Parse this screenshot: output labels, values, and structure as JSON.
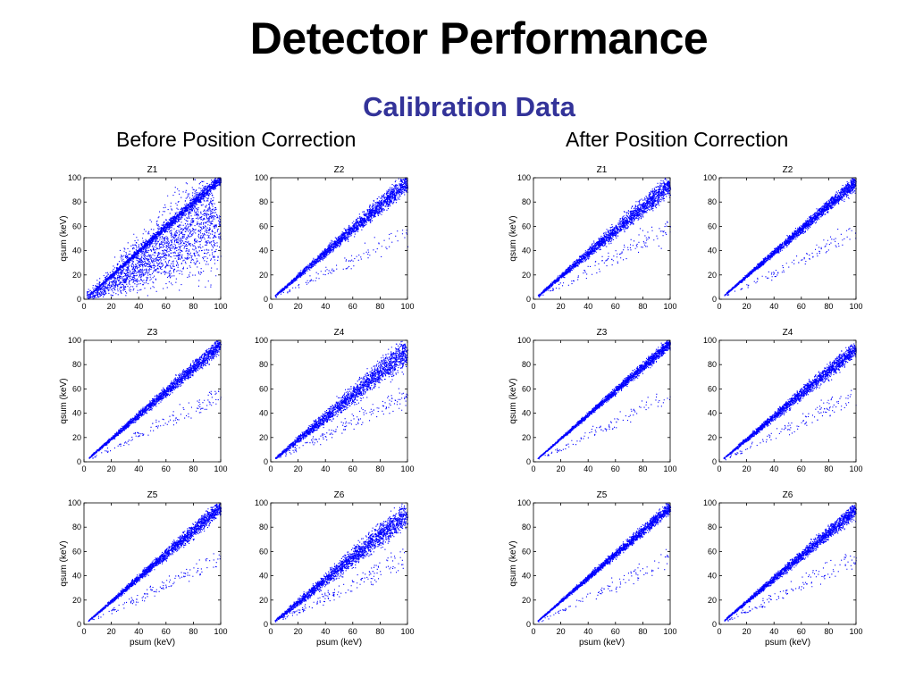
{
  "title": "Detector Performance",
  "subtitle": "Calibration Data",
  "panels": [
    {
      "heading": "Before Position Correction"
    },
    {
      "heading": "After Position Correction"
    }
  ],
  "colors": {
    "title": "#000000",
    "subtitle": "#333399",
    "points": "#0000ff",
    "axes": "#000000"
  },
  "chart_data": [
    {
      "type": "scatter",
      "panel": "Before Position Correction",
      "title": "Z1",
      "xlabel": "",
      "ylabel": "qsum (keV)",
      "xlim": [
        0,
        100
      ],
      "ylim": [
        0,
        100
      ],
      "xticks": [
        0,
        20,
        40,
        60,
        80,
        100
      ],
      "yticks": [
        0,
        20,
        40,
        60,
        80,
        100
      ],
      "bands": [
        {
          "from": [
            2,
            2
          ],
          "to": [
            100,
            68
          ],
          "width_at_end": 75,
          "density": 0.9
        },
        {
          "from": [
            5,
            5
          ],
          "to": [
            100,
            100
          ],
          "width_at_end": 8,
          "density": 0.75
        }
      ]
    },
    {
      "type": "scatter",
      "panel": "Before Position Correction",
      "title": "Z2",
      "xlabel": "",
      "ylabel": "",
      "xlim": [
        0,
        100
      ],
      "ylim": [
        0,
        100
      ],
      "xticks": [
        0,
        20,
        40,
        60,
        80,
        100
      ],
      "yticks": [
        0,
        20,
        40,
        60,
        80,
        100
      ],
      "bands": [
        {
          "from": [
            3,
            3
          ],
          "to": [
            100,
            97
          ],
          "width_at_end": 13,
          "density": 0.85
        },
        {
          "from": [
            3,
            2
          ],
          "to": [
            100,
            55
          ],
          "width_at_end": 18,
          "density": 0.04
        }
      ]
    },
    {
      "type": "scatter",
      "panel": "Before Position Correction",
      "title": "Z3",
      "xlabel": "",
      "ylabel": "qsum (keV)",
      "xlim": [
        0,
        100
      ],
      "ylim": [
        0,
        100
      ],
      "xticks": [
        0,
        20,
        40,
        60,
        80,
        100
      ],
      "yticks": [
        0,
        20,
        40,
        60,
        80,
        100
      ],
      "bands": [
        {
          "from": [
            3,
            3
          ],
          "to": [
            100,
            97
          ],
          "width_at_end": 10,
          "density": 0.85
        },
        {
          "from": [
            3,
            2
          ],
          "to": [
            100,
            55
          ],
          "width_at_end": 15,
          "density": 0.05
        }
      ]
    },
    {
      "type": "scatter",
      "panel": "Before Position Correction",
      "title": "Z4",
      "xlabel": "",
      "ylabel": "",
      "xlim": [
        0,
        100
      ],
      "ylim": [
        0,
        100
      ],
      "xticks": [
        0,
        20,
        40,
        60,
        80,
        100
      ],
      "yticks": [
        0,
        20,
        40,
        60,
        80,
        100
      ],
      "bands": [
        {
          "from": [
            3,
            3
          ],
          "to": [
            100,
            92
          ],
          "width_at_end": 18,
          "density": 0.85
        },
        {
          "from": [
            3,
            2
          ],
          "to": [
            100,
            55
          ],
          "width_at_end": 18,
          "density": 0.06
        }
      ]
    },
    {
      "type": "scatter",
      "panel": "Before Position Correction",
      "title": "Z5",
      "xlabel": "psum (keV)",
      "ylabel": "qsum (keV)",
      "xlim": [
        0,
        100
      ],
      "ylim": [
        0,
        100
      ],
      "xticks": [
        0,
        20,
        40,
        60,
        80,
        100
      ],
      "yticks": [
        0,
        20,
        40,
        60,
        80,
        100
      ],
      "bands": [
        {
          "from": [
            3,
            3
          ],
          "to": [
            100,
            97
          ],
          "width_at_end": 10,
          "density": 0.85
        },
        {
          "from": [
            3,
            2
          ],
          "to": [
            100,
            55
          ],
          "width_at_end": 15,
          "density": 0.05
        }
      ]
    },
    {
      "type": "scatter",
      "panel": "Before Position Correction",
      "title": "Z6",
      "xlabel": "psum (keV)",
      "ylabel": "",
      "xlim": [
        0,
        100
      ],
      "ylim": [
        0,
        100
      ],
      "xticks": [
        0,
        20,
        40,
        60,
        80,
        100
      ],
      "yticks": [
        0,
        20,
        40,
        60,
        80,
        100
      ],
      "bands": [
        {
          "from": [
            3,
            3
          ],
          "to": [
            100,
            92
          ],
          "width_at_end": 18,
          "density": 0.85
        },
        {
          "from": [
            3,
            2
          ],
          "to": [
            100,
            55
          ],
          "width_at_end": 18,
          "density": 0.06
        }
      ]
    },
    {
      "type": "scatter",
      "panel": "After Position Correction",
      "title": "Z1",
      "xlabel": "",
      "ylabel": "qsum (keV)",
      "xlim": [
        0,
        100
      ],
      "ylim": [
        0,
        100
      ],
      "xticks": [
        0,
        20,
        40,
        60,
        80,
        100
      ],
      "yticks": [
        0,
        20,
        40,
        60,
        80,
        100
      ],
      "bands": [
        {
          "from": [
            3,
            3
          ],
          "to": [
            100,
            95
          ],
          "width_at_end": 14,
          "density": 0.85
        },
        {
          "from": [
            3,
            2
          ],
          "to": [
            100,
            60
          ],
          "width_at_end": 20,
          "density": 0.05
        }
      ]
    },
    {
      "type": "scatter",
      "panel": "After Position Correction",
      "title": "Z2",
      "xlabel": "",
      "ylabel": "",
      "xlim": [
        0,
        100
      ],
      "ylim": [
        0,
        100
      ],
      "xticks": [
        0,
        20,
        40,
        60,
        80,
        100
      ],
      "yticks": [
        0,
        20,
        40,
        60,
        80,
        100
      ],
      "bands": [
        {
          "from": [
            3,
            3
          ],
          "to": [
            100,
            97
          ],
          "width_at_end": 9,
          "density": 0.85
        },
        {
          "from": [
            3,
            2
          ],
          "to": [
            100,
            55
          ],
          "width_at_end": 15,
          "density": 0.04
        }
      ]
    },
    {
      "type": "scatter",
      "panel": "After Position Correction",
      "title": "Z3",
      "xlabel": "",
      "ylabel": "qsum (keV)",
      "xlim": [
        0,
        100
      ],
      "ylim": [
        0,
        100
      ],
      "xticks": [
        0,
        20,
        40,
        60,
        80,
        100
      ],
      "yticks": [
        0,
        20,
        40,
        60,
        80,
        100
      ],
      "bands": [
        {
          "from": [
            3,
            3
          ],
          "to": [
            100,
            98
          ],
          "width_at_end": 7,
          "density": 0.85
        },
        {
          "from": [
            3,
            2
          ],
          "to": [
            100,
            55
          ],
          "width_at_end": 15,
          "density": 0.04
        }
      ]
    },
    {
      "type": "scatter",
      "panel": "After Position Correction",
      "title": "Z4",
      "xlabel": "",
      "ylabel": "",
      "xlim": [
        0,
        100
      ],
      "ylim": [
        0,
        100
      ],
      "xticks": [
        0,
        20,
        40,
        60,
        80,
        100
      ],
      "yticks": [
        0,
        20,
        40,
        60,
        80,
        100
      ],
      "bands": [
        {
          "from": [
            3,
            3
          ],
          "to": [
            100,
            94
          ],
          "width_at_end": 11,
          "density": 0.85
        },
        {
          "from": [
            3,
            2
          ],
          "to": [
            100,
            55
          ],
          "width_at_end": 18,
          "density": 0.05
        }
      ]
    },
    {
      "type": "scatter",
      "panel": "After Position Correction",
      "title": "Z5",
      "xlabel": "psum (keV)",
      "ylabel": "qsum (keV)",
      "xlim": [
        0,
        100
      ],
      "ylim": [
        0,
        100
      ],
      "xticks": [
        0,
        20,
        40,
        60,
        80,
        100
      ],
      "yticks": [
        0,
        20,
        40,
        60,
        80,
        100
      ],
      "bands": [
        {
          "from": [
            3,
            3
          ],
          "to": [
            100,
            97
          ],
          "width_at_end": 8,
          "density": 0.85
        },
        {
          "from": [
            3,
            2
          ],
          "to": [
            100,
            55
          ],
          "width_at_end": 15,
          "density": 0.04
        }
      ]
    },
    {
      "type": "scatter",
      "panel": "After Position Correction",
      "title": "Z6",
      "xlabel": "psum (keV)",
      "ylabel": "",
      "xlim": [
        0,
        100
      ],
      "ylim": [
        0,
        100
      ],
      "xticks": [
        0,
        20,
        40,
        60,
        80,
        100
      ],
      "yticks": [
        0,
        20,
        40,
        60,
        80,
        100
      ],
      "bands": [
        {
          "from": [
            3,
            3
          ],
          "to": [
            100,
            95
          ],
          "width_at_end": 10,
          "density": 0.85
        },
        {
          "from": [
            3,
            2
          ],
          "to": [
            100,
            55
          ],
          "width_at_end": 18,
          "density": 0.05
        }
      ]
    }
  ]
}
